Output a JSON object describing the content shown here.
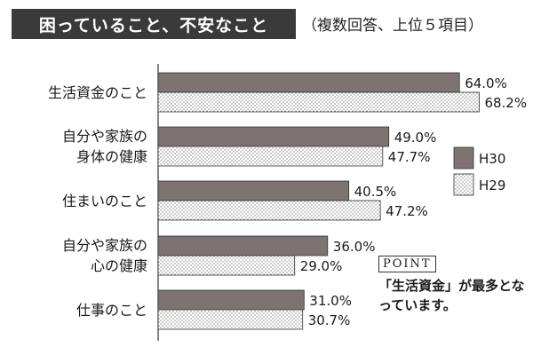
{
  "header": {
    "title": "困っていること、不安なこと",
    "subtitle": "（複数回答、上位５項目）"
  },
  "point": {
    "label": "POINT",
    "text": "「生活資金」が最多となっています。"
  },
  "colors": {
    "h30": "#7d7373",
    "h29_dots": "#555555",
    "axis": "#333333"
  },
  "chart_data": {
    "type": "bar",
    "orientation": "horizontal",
    "categories": [
      [
        "生活資金のこと"
      ],
      [
        "自分や家族の",
        "身体の健康"
      ],
      [
        "住まいのこと"
      ],
      [
        "自分や家族の",
        "心の健康"
      ],
      [
        "仕事のこと"
      ]
    ],
    "series": [
      {
        "name": "H30",
        "values": [
          64.0,
          49.0,
          40.5,
          36.0,
          31.0
        ],
        "labels": [
          "64.0%",
          "49.0%",
          "40.5%",
          "36.0%",
          "31.0%"
        ]
      },
      {
        "name": "H29",
        "values": [
          68.2,
          47.7,
          47.2,
          29.0,
          30.7
        ],
        "labels": [
          "68.2%",
          "47.7%",
          "47.2%",
          "29.0%",
          "30.7%"
        ]
      }
    ],
    "xlim": [
      0,
      100
    ],
    "legend_position": "right",
    "grid": false
  }
}
